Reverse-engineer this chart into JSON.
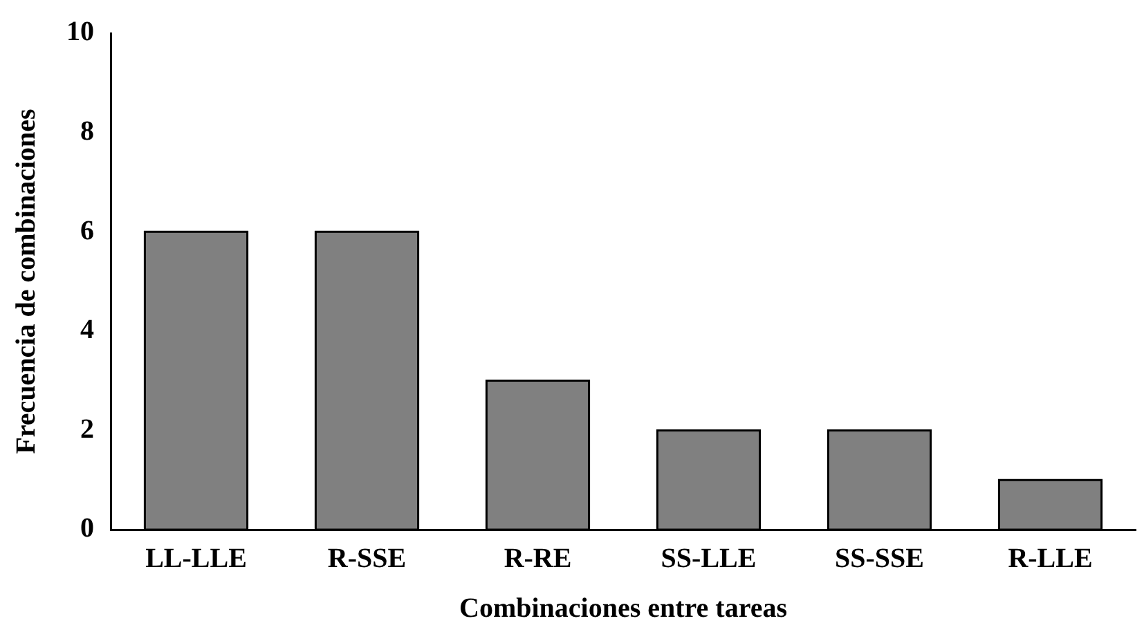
{
  "chart_data": {
    "type": "bar",
    "xlabel": "Combinaciones entre tareas",
    "ylabel": "Frecuencia de combinaciones",
    "categories": [
      "LL-LLE",
      "R-SSE",
      "R-RE",
      "SS-LLE",
      "SS-SSE",
      "R-LLE"
    ],
    "values": [
      6,
      6,
      3,
      2,
      2,
      1
    ],
    "color": "#808080",
    "ylim": [
      0,
      10
    ],
    "yticks": [
      0,
      2,
      4,
      6,
      8,
      10
    ],
    "grid": false,
    "legend": false
  }
}
